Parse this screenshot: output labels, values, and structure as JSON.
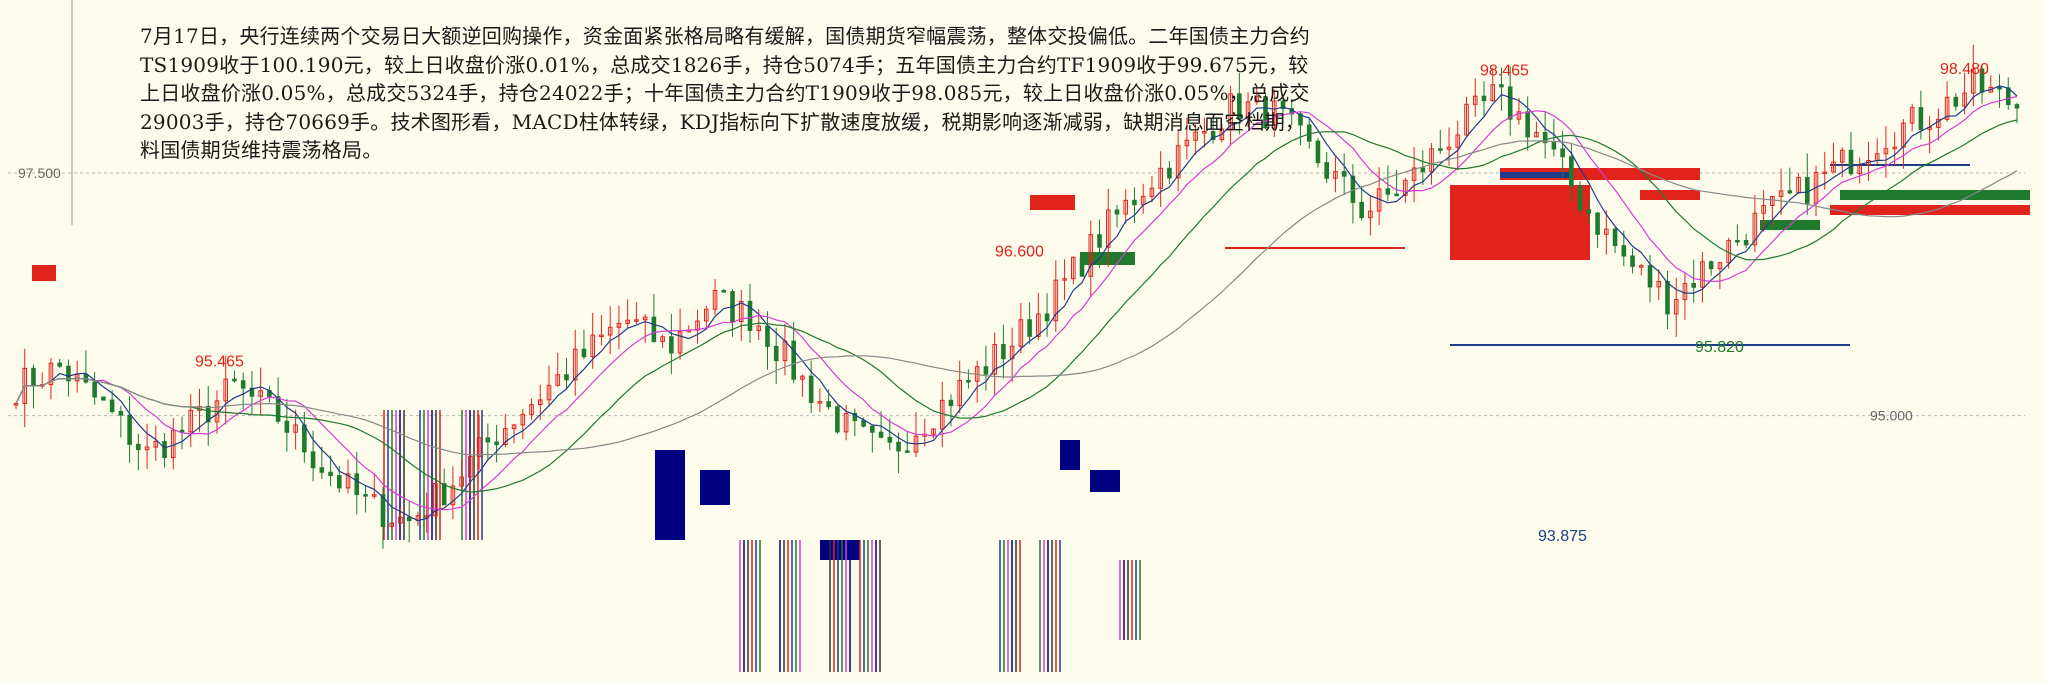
{
  "news": {
    "text": "7月17日，央行连续两个交易日大额逆回购操作，资金面紧张格局略有缓解，国债期货窄幅震荡，整体交投偏低。二年国债主力合约TS1909收于100.190元，较上日收盘价涨0.01%，总成交1826手，持仓5074手；五年国债主力合约TF1909收于99.675元，较上日收盘价涨0.05%，总成交5324手，持仓24022手；十年国债主力合约T1909收于98.085元，较上日收盘价涨0.05%，总成交29003手，持仓70669手。技术图形看，MACD柱体转绿，KDJ指标向下扩散速度放缓，税期影响逐渐减弱，缺期消息面空档期，料国债期货维持震荡格局。"
  },
  "colors": {
    "background": "#fdfcec",
    "up": "#e0241c",
    "down": "#1f7a2e",
    "blue": "#1f3c8a",
    "navy": "#000080",
    "magenta": "#d63cd6",
    "grid": "#b8b8b8"
  },
  "chart_data": {
    "type": "candlestick",
    "title": "",
    "y_ticks": [
      "97.500",
      "95.000"
    ],
    "ylim": [
      92.4,
      99.2
    ],
    "annotations": [
      {
        "label": "98.465",
        "value": 98.465,
        "kind": "high"
      },
      {
        "label": "98.480",
        "value": 98.48,
        "kind": "high"
      },
      {
        "label": "96.600",
        "value": 96.6,
        "kind": "high"
      },
      {
        "label": "95.465",
        "value": 95.465,
        "kind": "high"
      },
      {
        "label": "95.820",
        "value": 95.82,
        "kind": "low"
      },
      {
        "label": "93.875",
        "value": 93.875,
        "kind": "low"
      }
    ],
    "close_path": [
      95.3,
      95.5,
      95.1,
      94.6,
      94.9,
      95.3,
      95.0,
      94.5,
      94.1,
      93.9,
      94.3,
      94.8,
      95.2,
      95.6,
      96.0,
      95.7,
      96.2,
      96.0,
      95.4,
      94.9,
      94.6,
      95.0,
      95.4,
      95.8,
      96.3,
      96.9,
      97.4,
      97.8,
      98.2,
      98.1,
      97.6,
      97.1,
      97.4,
      97.9,
      98.3,
      97.9,
      97.2,
      96.6,
      96.2,
      96.6,
      97.0,
      97.3,
      97.6,
      97.9,
      98.1,
      98.4,
      98.2
    ]
  }
}
